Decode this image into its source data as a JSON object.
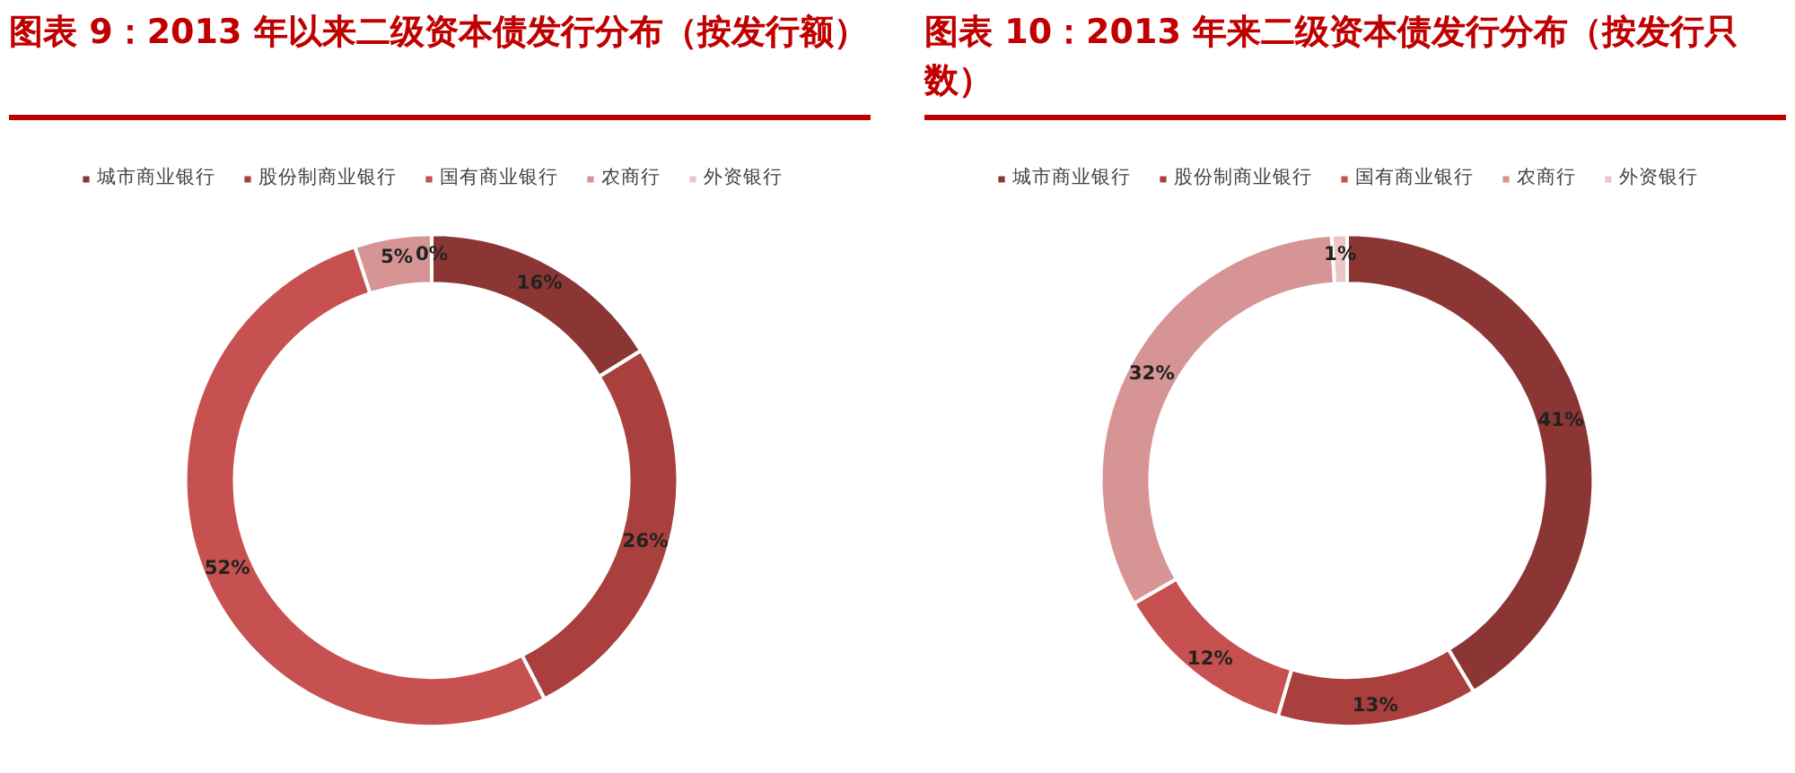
{
  "chart_data": [
    {
      "type": "donut",
      "title": "图表 9：2013 年以来二级资本债发行分布（按发行额）",
      "categories": [
        "城市商业银行",
        "股份制商业银行",
        "国有商业银行",
        "农商行",
        "外资银行"
      ],
      "values": [
        16,
        26,
        52,
        5,
        0
      ],
      "value_labels": [
        "16%",
        "26%",
        "52%",
        "5%",
        "0%"
      ],
      "colors": [
        "#8b3634",
        "#a9403d",
        "#c75150",
        "#d69594",
        "#ecc6c6"
      ],
      "legend": "top"
    },
    {
      "type": "donut",
      "title": "图表 10：2013 年来二级资本债发行分布（按发行只数）",
      "categories": [
        "城市商业银行",
        "股份制商业银行",
        "国有商业银行",
        "农商行",
        "外资银行"
      ],
      "values": [
        41,
        13,
        12,
        32,
        1
      ],
      "value_labels": [
        "41%",
        "13%",
        "12%",
        "32%",
        "1%"
      ],
      "colors": [
        "#8b3634",
        "#a9403d",
        "#c75150",
        "#d69594",
        "#ecc6c6"
      ],
      "legend": "top"
    }
  ]
}
